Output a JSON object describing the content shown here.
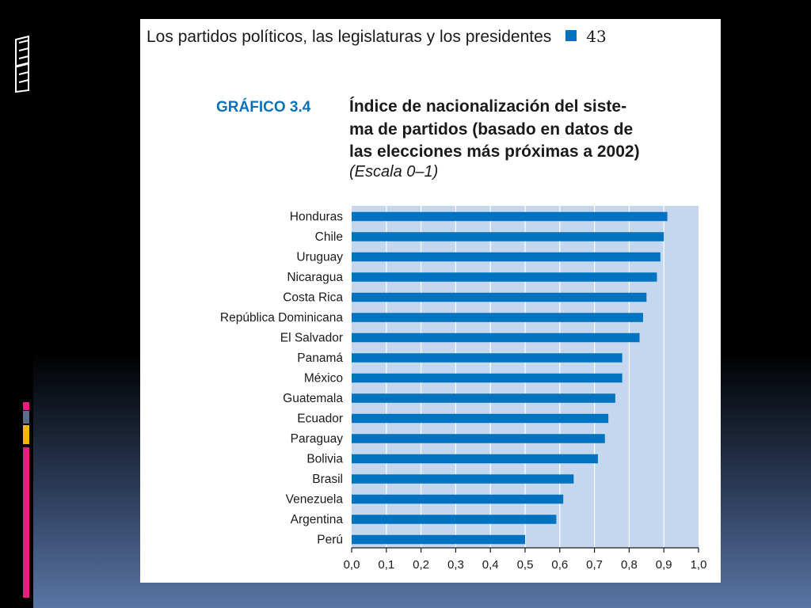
{
  "page": {
    "header": "Los partidos políticos, las legislaturas y los presidentes",
    "page_number": "43"
  },
  "decor": {
    "accent_colors": [
      "#e61e82",
      "#5a6e8c",
      "#f2b705",
      "#e61e82"
    ]
  },
  "chart_data": {
    "type": "bar",
    "orientation": "horizontal",
    "label": "GRÁFICO 3.4",
    "title": "Índice de nacionalización del siste-\nma de partidos (basado en datos de\nlas elecciones más próximas a 2002)",
    "subtitle": "(Escala 0–1)",
    "categories": [
      "Honduras",
      "Chile",
      "Uruguay",
      "Nicaragua",
      "Costa Rica",
      "República Dominicana",
      "El Salvador",
      "Panamá",
      "México",
      "Guatemala",
      "Ecuador",
      "Paraguay",
      "Bolivia",
      "Brasil",
      "Venezuela",
      "Argentina",
      "Perú"
    ],
    "values": [
      0.91,
      0.9,
      0.89,
      0.88,
      0.85,
      0.84,
      0.83,
      0.78,
      0.78,
      0.76,
      0.74,
      0.73,
      0.71,
      0.64,
      0.61,
      0.59,
      0.5
    ],
    "xlim": [
      0,
      1
    ],
    "xticks": [
      "0,0",
      "0,1",
      "0,2",
      "0,3",
      "0,4",
      "0,5",
      "0,6",
      "0,7",
      "0,8",
      "0,9",
      "1,0"
    ],
    "grid": true,
    "bar_color": "#0073c0",
    "plot_background": "#c5d7ef"
  }
}
